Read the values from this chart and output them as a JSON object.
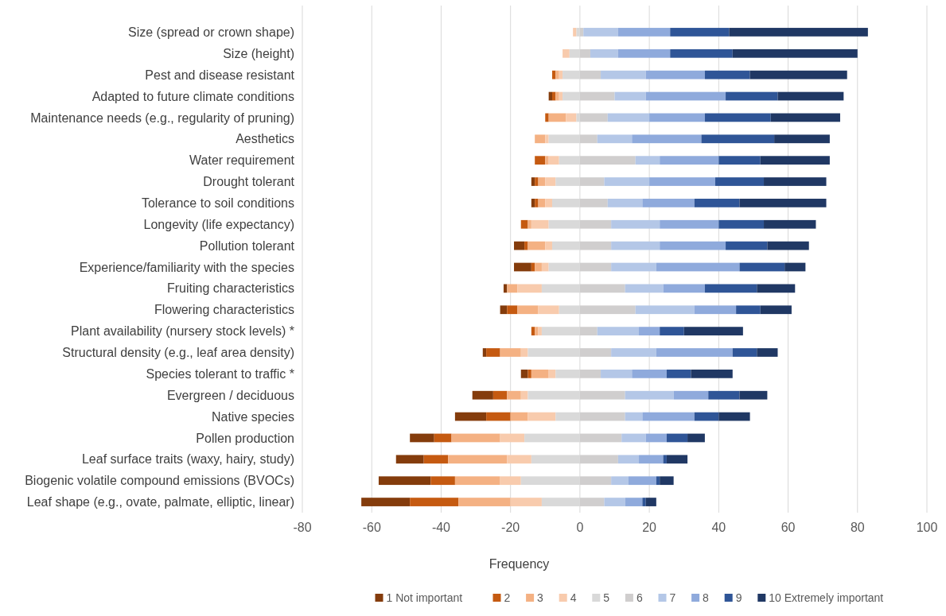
{
  "chart_data": {
    "type": "bar",
    "orientation": "horizontal",
    "xlabel": "Frequency",
    "categories": [
      "Size (spread or crown shape)",
      "Size (height)",
      "Pest and disease resistant",
      "Adapted to future climate conditions",
      "Maintenance needs (e.g., regularity of pruning)",
      "Aesthetics",
      "Water requirement",
      "Drought tolerant",
      "Tolerance to soil conditions",
      "Longevity (life expectancy)",
      "Pollution tolerant",
      "Experience/familiarity with the species",
      "Fruiting characteristics",
      "Flowering characteristics",
      "Plant availability (nursery stock levels) *",
      "Structural density (e.g., leaf area density)",
      "Species tolerant to traffic *",
      "Evergreen / deciduous",
      "Native species",
      "Pollen production",
      "Leaf surface traits (waxy, hairy, study)",
      "Biogenic volatile compound emissions (BVOCs)",
      "Leaf shape (e.g., ovate, palmate, elliptic, linear)"
    ],
    "xlim": [
      -80,
      100
    ],
    "xticks": [
      -80,
      -60,
      -40,
      -20,
      0,
      20,
      40,
      60,
      80,
      100
    ],
    "grid": "x",
    "legend": "bottom",
    "series": [
      {
        "name": "1 Not important",
        "color": "#843c0c",
        "values": [
          null,
          null,
          null,
          1,
          null,
          null,
          null,
          1,
          1,
          null,
          3,
          5,
          1,
          2,
          null,
          1,
          2,
          6,
          9,
          7,
          8,
          15,
          14
        ],
        "base": [
          null,
          null,
          null,
          -9,
          null,
          null,
          null,
          -14,
          -14,
          null,
          -19,
          -19,
          -22,
          -23,
          null,
          -28,
          -17,
          -31,
          -36,
          -49,
          -53,
          -58,
          -63
        ]
      },
      {
        "name": "2",
        "color": "#c55a11",
        "values": [
          null,
          null,
          1,
          1,
          1,
          null,
          3,
          1,
          1,
          2,
          1,
          1,
          null,
          3,
          1,
          4,
          1,
          4,
          7,
          5,
          7,
          7,
          14
        ],
        "base": [
          null,
          null,
          -8,
          -8,
          -10,
          null,
          -13,
          -13,
          -13,
          -17,
          -16,
          -14,
          null,
          -21,
          -14,
          -27,
          -15,
          -25,
          -27,
          -42,
          -45,
          -43,
          -49
        ]
      },
      {
        "name": "3",
        "color": "#f4b183",
        "values": [
          null,
          null,
          1,
          1,
          5,
          3,
          1,
          2,
          2,
          1,
          5,
          2,
          3,
          6,
          1,
          6,
          5,
          4,
          5,
          14,
          17,
          13,
          15
        ],
        "base": [
          null,
          null,
          -7,
          -7,
          -9,
          -13,
          -10,
          -12,
          -12,
          -15,
          -15,
          -13,
          -21,
          -18,
          -13,
          -23,
          -14,
          -21,
          -20,
          -37,
          -38,
          -36,
          -35
        ]
      },
      {
        "name": "4",
        "color": "#f8cbad",
        "values": [
          1,
          2,
          1,
          1,
          3,
          1,
          3,
          3,
          2,
          5,
          2,
          2,
          7,
          6,
          1,
          2,
          2,
          2,
          8,
          7,
          7,
          6,
          9
        ],
        "base": [
          -2,
          -5,
          -6,
          -6,
          -4,
          -10,
          -9,
          -10,
          -10,
          -14,
          -10,
          -11,
          -18,
          -12,
          -12,
          -17,
          -9,
          -17,
          -15,
          -23,
          -21,
          -23,
          -20
        ]
      },
      {
        "name": "5",
        "color": "#d9d9d9",
        "values": [
          1,
          3,
          5,
          5,
          1,
          9,
          6,
          7,
          8,
          9,
          8,
          9,
          11,
          6,
          11,
          15,
          7,
          15,
          7,
          16,
          14,
          17,
          11
        ],
        "base": [
          -1,
          -3,
          -5,
          -5,
          -1,
          -9,
          -6,
          -7,
          -8,
          -9,
          -8,
          -9,
          -11,
          -6,
          -11,
          -15,
          -7,
          -15,
          -7,
          -16,
          -14,
          -17,
          -11
        ]
      },
      {
        "name": "6",
        "color": "#d0cece",
        "values": [
          1,
          3,
          6,
          10,
          8,
          5,
          16,
          7,
          8,
          9,
          9,
          9,
          13,
          16,
          5,
          9,
          6,
          13,
          13,
          12,
          11,
          9,
          7
        ],
        "base": [
          0,
          0,
          0,
          0,
          0,
          0,
          0,
          0,
          0,
          0,
          0,
          0,
          0,
          0,
          0,
          0,
          0,
          0,
          0,
          0,
          0,
          0,
          0
        ]
      },
      {
        "name": "7",
        "color": "#b4c7e7",
        "values": [
          10,
          8,
          13,
          9,
          12,
          10,
          7,
          13,
          10,
          14,
          14,
          13,
          11,
          17,
          12,
          13,
          9,
          14,
          5,
          7,
          6,
          5,
          6
        ],
        "base": [
          1,
          3,
          6,
          10,
          8,
          5,
          16,
          7,
          8,
          9,
          9,
          9,
          13,
          16,
          5,
          9,
          6,
          13,
          13,
          12,
          11,
          9,
          7
        ]
      },
      {
        "name": "8",
        "color": "#8faadc",
        "values": [
          15,
          15,
          17,
          23,
          16,
          20,
          17,
          19,
          15,
          17,
          19,
          24,
          12,
          12,
          6,
          22,
          10,
          10,
          15,
          6,
          7,
          8,
          5
        ],
        "base": [
          11,
          11,
          19,
          19,
          20,
          15,
          23,
          20,
          18,
          23,
          23,
          22,
          24,
          33,
          17,
          22,
          15,
          27,
          18,
          19,
          17,
          14,
          13
        ]
      },
      {
        "name": "9",
        "color": "#2f5597",
        "values": [
          17,
          18,
          13,
          15,
          19,
          21,
          12,
          14,
          13,
          13,
          12,
          13,
          15,
          7,
          7,
          7,
          7,
          9,
          7,
          6,
          1,
          1,
          1
        ],
        "base": [
          26,
          26,
          36,
          42,
          36,
          35,
          40,
          39,
          33,
          40,
          42,
          46,
          36,
          45,
          23,
          44,
          25,
          37,
          33,
          25,
          24,
          22,
          18
        ]
      },
      {
        "name": "10 Extremely important",
        "color": "#203864",
        "values": [
          40,
          36,
          28,
          19,
          20,
          16,
          20,
          18,
          25,
          15,
          12,
          6,
          11,
          9,
          17,
          6,
          12,
          8,
          9,
          5,
          6,
          4,
          3
        ],
        "base": [
          43,
          44,
          49,
          57,
          55,
          56,
          52,
          53,
          46,
          53,
          54,
          59,
          51,
          52,
          30,
          51,
          32,
          46,
          40,
          31,
          25,
          23,
          19
        ]
      }
    ]
  }
}
